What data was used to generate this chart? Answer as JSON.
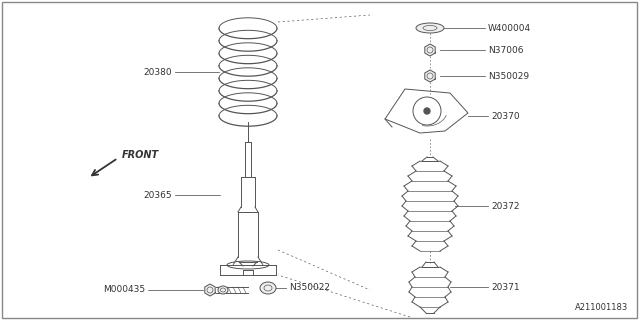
{
  "background_color": "#ffffff",
  "border_color": "#aaaaaa",
  "line_color": "#555555",
  "title": "A211001183",
  "front_label": "FRONT",
  "parts": {
    "coil_spring": {
      "label": "20380"
    },
    "shock_absorber": {
      "label": "20365"
    },
    "mount_assembly": {
      "label": "20370"
    },
    "bump_stop": {
      "label": "20372"
    },
    "bump_stop_lower": {
      "label": "20371"
    },
    "washer_top": {
      "label": "W400004"
    },
    "nut_top": {
      "label": "N37006"
    },
    "nut_mid": {
      "label": "N350029"
    },
    "nut_bottom": {
      "label": "N350022"
    },
    "bolt": {
      "label": "M000435"
    }
  }
}
